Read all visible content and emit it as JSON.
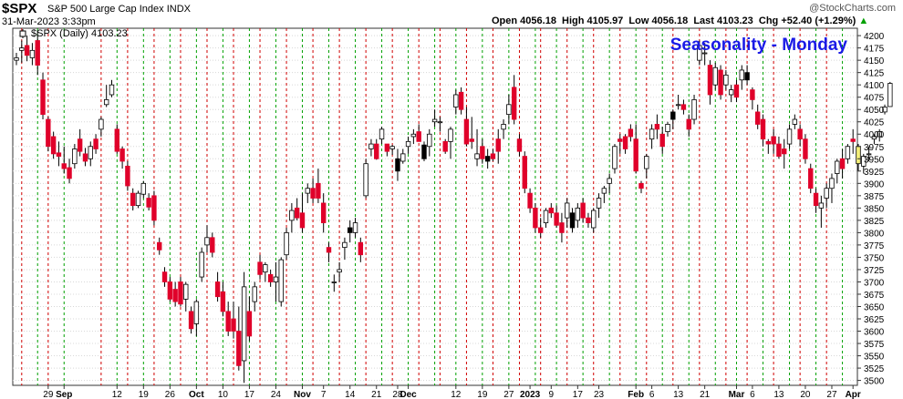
{
  "header": {
    "symbol": "$SPX",
    "name": "S&P 500 Large Cap Index",
    "exchange": "INDX",
    "date": "31-Mar-2023 3:33pm",
    "watermark": "@StockCharts.com",
    "ohlc": "Open 4056.18  High 4105.97  Low 4056.18  Last 4103.23  Chg +52.40 (+1.29%)",
    "arrow": "▲"
  },
  "colors": {
    "up": "#ffffff",
    "down": "#e0002a",
    "black": "#000000",
    "current": "#f5f07a",
    "grid": "#d8d8d8",
    "vline_red": "#d00000",
    "vline_green": "#00a000",
    "title_blue": "#1a1ae6"
  },
  "chart_data": {
    "type": "candlestick",
    "title": "Seasonality - Monday",
    "legend": "$SPX (Daily) 4103.23",
    "ylim": [
      3490,
      4215
    ],
    "yticks": [
      3500,
      3525,
      3550,
      3575,
      3600,
      3625,
      3650,
      3675,
      3700,
      3725,
      3750,
      3775,
      3800,
      3825,
      3850,
      3875,
      3900,
      3925,
      3950,
      3975,
      4000,
      4025,
      4050,
      4075,
      4100,
      4125,
      4150,
      4175,
      4200
    ],
    "xlabels": [
      {
        "i": 6,
        "t": "29"
      },
      {
        "i": 9,
        "t": "Sep",
        "b": true
      },
      {
        "i": 19,
        "t": "12"
      },
      {
        "i": 24,
        "t": "19"
      },
      {
        "i": 29,
        "t": "26"
      },
      {
        "i": 34,
        "t": "Oct",
        "b": true
      },
      {
        "i": 39,
        "t": "10"
      },
      {
        "i": 44,
        "t": "17"
      },
      {
        "i": 49,
        "t": "24"
      },
      {
        "i": 54,
        "t": "Nov",
        "b": true
      },
      {
        "i": 58,
        "t": "7"
      },
      {
        "i": 63,
        "t": "14"
      },
      {
        "i": 68,
        "t": "21"
      },
      {
        "i": 72,
        "t": "28"
      },
      {
        "i": 74,
        "t": "Dec",
        "b": true
      },
      {
        "i": 83,
        "t": "12"
      },
      {
        "i": 88,
        "t": "19"
      },
      {
        "i": 93,
        "t": "27"
      },
      {
        "i": 97,
        "t": "2023",
        "b": true
      },
      {
        "i": 101,
        "t": "9"
      },
      {
        "i": 106,
        "t": "17"
      },
      {
        "i": 110,
        "t": "23"
      },
      {
        "i": 117,
        "t": "Feb",
        "b": true
      },
      {
        "i": 120,
        "t": "6"
      },
      {
        "i": 125,
        "t": "13"
      },
      {
        "i": 130,
        "t": "21"
      },
      {
        "i": 136,
        "t": "Mar",
        "b": true
      },
      {
        "i": 139,
        "t": "6"
      },
      {
        "i": 144,
        "t": "13"
      },
      {
        "i": 149,
        "t": "20"
      },
      {
        "i": 154,
        "t": "27"
      },
      {
        "i": 158,
        "t": "Apr",
        "b": true
      }
    ],
    "red_lines": [
      1,
      6,
      16,
      21,
      26,
      31,
      36,
      41,
      46,
      51,
      56,
      61,
      66,
      71,
      76,
      80,
      85,
      90,
      95,
      99,
      104,
      109,
      114,
      119,
      124,
      129,
      134,
      138,
      143,
      148,
      153
    ],
    "green_lines": [
      4,
      9,
      19,
      24,
      29,
      34,
      39,
      44,
      49,
      54,
      59,
      64,
      69,
      74,
      79,
      83,
      88,
      93,
      98,
      102,
      107,
      112,
      117,
      122,
      127,
      132,
      136,
      141,
      146,
      151,
      156
    ],
    "ohlc": [
      [
        4150,
        4165,
        4140,
        4155
      ],
      [
        4170,
        4190,
        4145,
        4175
      ],
      [
        4180,
        4200,
        4148,
        4160
      ],
      [
        4155,
        4185,
        4140,
        4170
      ],
      [
        4190,
        4210,
        4120,
        4140
      ],
      [
        4110,
        4125,
        4030,
        4040
      ],
      [
        4030,
        4035,
        3965,
        3975
      ],
      [
        3995,
        4005,
        3950,
        3960
      ],
      [
        3962,
        3985,
        3935,
        3955
      ],
      [
        3940,
        3975,
        3920,
        3930
      ],
      [
        3932,
        3950,
        3900,
        3910
      ],
      [
        3940,
        3980,
        3930,
        3970
      ],
      [
        3990,
        4010,
        3955,
        3965
      ],
      [
        3960,
        3972,
        3935,
        3945
      ],
      [
        3950,
        3985,
        3935,
        3975
      ],
      [
        3990,
        4000,
        3960,
        3970
      ],
      [
        4010,
        4035,
        3995,
        4030
      ],
      [
        4060,
        4100,
        4055,
        4070
      ],
      [
        4080,
        4110,
        4075,
        4100
      ],
      [
        4010,
        4020,
        3960,
        3965
      ],
      [
        3970,
        3975,
        3930,
        3945
      ],
      [
        3935,
        3945,
        3885,
        3895
      ],
      [
        3880,
        3890,
        3845,
        3855
      ],
      [
        3855,
        3885,
        3850,
        3880
      ],
      [
        3878,
        3905,
        3870,
        3900
      ],
      [
        3870,
        3880,
        3845,
        3852
      ],
      [
        3875,
        3885,
        3815,
        3825
      ],
      [
        3780,
        3790,
        3755,
        3765
      ],
      [
        3720,
        3730,
        3690,
        3700
      ],
      [
        3700,
        3710,
        3660,
        3665
      ],
      [
        3685,
        3700,
        3650,
        3660
      ],
      [
        3700,
        3710,
        3650,
        3655
      ],
      [
        3665,
        3700,
        3640,
        3695
      ],
      [
        3640,
        3650,
        3595,
        3605
      ],
      [
        3615,
        3665,
        3590,
        3660
      ],
      [
        3710,
        3770,
        3700,
        3760
      ],
      [
        3775,
        3815,
        3760,
        3790
      ],
      [
        3790,
        3800,
        3750,
        3760
      ],
      [
        3700,
        3720,
        3660,
        3670
      ],
      [
        3680,
        3700,
        3630,
        3640
      ],
      [
        3640,
        3660,
        3590,
        3600
      ],
      [
        3625,
        3660,
        3585,
        3600
      ],
      [
        3600,
        3650,
        3520,
        3530
      ],
      [
        3540,
        3720,
        3495,
        3690
      ],
      [
        3640,
        3670,
        3580,
        3590
      ],
      [
        3660,
        3700,
        3640,
        3690
      ],
      [
        3740,
        3755,
        3705,
        3715
      ],
      [
        3720,
        3740,
        3700,
        3735
      ],
      [
        3715,
        3725,
        3690,
        3700
      ],
      [
        3700,
        3740,
        3660,
        3710
      ],
      [
        3660,
        3750,
        3650,
        3745
      ],
      [
        3755,
        3810,
        3745,
        3800
      ],
      [
        3825,
        3860,
        3800,
        3845
      ],
      [
        3850,
        3870,
        3825,
        3830
      ],
      [
        3840,
        3880,
        3800,
        3810
      ],
      [
        3880,
        3900,
        3860,
        3890
      ],
      [
        3890,
        3910,
        3860,
        3870
      ],
      [
        3900,
        3930,
        3860,
        3870
      ],
      [
        3860,
        3880,
        3800,
        3820
      ],
      [
        3770,
        3780,
        3740,
        3760
      ],
      [
        3700,
        3715,
        3680,
        3700
      ],
      [
        3720,
        3740,
        3700,
        3725
      ],
      [
        3770,
        3790,
        3745,
        3780
      ],
      [
        3810,
        3825,
        3780,
        3800
      ],
      [
        3800,
        3830,
        3790,
        3820
      ],
      [
        3780,
        3790,
        3740,
        3755
      ],
      [
        3875,
        3950,
        3870,
        3940
      ],
      [
        3970,
        3990,
        3955,
        3980
      ],
      [
        3980,
        3990,
        3948,
        3950
      ],
      [
        3990,
        4015,
        3980,
        4010
      ],
      [
        3980,
        3980,
        3955,
        3965
      ],
      [
        3970,
        3978,
        3958,
        3975
      ],
      [
        3950,
        3970,
        3905,
        3925
      ],
      [
        3945,
        3970,
        3940,
        3960
      ],
      [
        3975,
        3995,
        3960,
        3985
      ],
      [
        3995,
        4010,
        3980,
        4000
      ],
      [
        4005,
        4020,
        3985,
        3985
      ],
      [
        3978,
        3985,
        3945,
        3950
      ],
      [
        3975,
        4010,
        3955,
        4000
      ],
      [
        4025,
        4050,
        4015,
        4030
      ],
      [
        4025,
        4035,
        4005,
        4025
      ],
      [
        3985,
        3990,
        3960,
        3965
      ],
      [
        3985,
        4015,
        3950,
        4010
      ],
      [
        4055,
        4090,
        4040,
        4080
      ],
      [
        4085,
        4095,
        4040,
        4050
      ],
      [
        4030,
        4055,
        3975,
        3980
      ],
      [
        3990,
        4035,
        3970,
        3985
      ],
      [
        3950,
        4010,
        3935,
        3960
      ],
      [
        3975,
        3990,
        3940,
        3950
      ],
      [
        3955,
        3970,
        3930,
        3945
      ],
      [
        3960,
        3970,
        3945,
        3950
      ],
      [
        3990,
        4010,
        3940,
        3965
      ],
      [
        4010,
        4030,
        3990,
        4020
      ],
      [
        4040,
        4080,
        4020,
        4060
      ],
      [
        4095,
        4120,
        4020,
        4030
      ],
      [
        3990,
        4000,
        3955,
        3965
      ],
      [
        3955,
        3965,
        3880,
        3890
      ],
      [
        3880,
        3890,
        3840,
        3850
      ],
      [
        3850,
        3860,
        3800,
        3810
      ],
      [
        3810,
        3830,
        3790,
        3800
      ],
      [
        3820,
        3850,
        3810,
        3845
      ],
      [
        3850,
        3860,
        3830,
        3840
      ],
      [
        3840,
        3855,
        3810,
        3815
      ],
      [
        3820,
        3840,
        3780,
        3800
      ],
      [
        3830,
        3870,
        3810,
        3860
      ],
      [
        3840,
        3850,
        3800,
        3810
      ],
      [
        3825,
        3860,
        3810,
        3850
      ],
      [
        3860,
        3870,
        3820,
        3830
      ],
      [
        3830,
        3840,
        3810,
        3820
      ],
      [
        3810,
        3850,
        3800,
        3845
      ],
      [
        3850,
        3880,
        3830,
        3870
      ],
      [
        3880,
        3895,
        3860,
        3890
      ],
      [
        3900,
        3920,
        3880,
        3910
      ],
      [
        3930,
        3980,
        3920,
        3975
      ],
      [
        3990,
        4000,
        3960,
        3985
      ],
      [
        3995,
        4000,
        3960,
        3970
      ],
      [
        4010,
        4020,
        3985,
        3995
      ],
      [
        3990,
        4020,
        3920,
        3925
      ],
      [
        3900,
        3905,
        3880,
        3890
      ],
      [
        3930,
        3960,
        3910,
        3955
      ],
      [
        3990,
        4020,
        3970,
        4010
      ],
      [
        4020,
        4040,
        3990,
        4010
      ],
      [
        4000,
        4015,
        3960,
        3975
      ],
      [
        4005,
        4025,
        3995,
        4020
      ],
      [
        4030,
        4050,
        4010,
        4045
      ],
      [
        4060,
        4080,
        4050,
        4060
      ],
      [
        4060,
        4070,
        4040,
        4050
      ],
      [
        4030,
        4040,
        3995,
        4010
      ],
      [
        4030,
        4080,
        4020,
        4070
      ],
      [
        4150,
        4190,
        4140,
        4180
      ],
      [
        4165,
        4185,
        4140,
        4165
      ],
      [
        4140,
        4150,
        4060,
        4080
      ],
      [
        4100,
        4145,
        4090,
        4135
      ],
      [
        4130,
        4140,
        4070,
        4080
      ],
      [
        4100,
        4130,
        4090,
        4120
      ],
      [
        4080,
        4100,
        4065,
        4090
      ],
      [
        4100,
        4110,
        4065,
        4075
      ],
      [
        4110,
        4140,
        4090,
        4130
      ],
      [
        4125,
        4140,
        4100,
        4110
      ],
      [
        4090,
        4095,
        4050,
        4070
      ],
      [
        4045,
        4060,
        4010,
        4020
      ],
      [
        4030,
        4040,
        3975,
        3990
      ],
      [
        3985,
        3990,
        3960,
        3980
      ],
      [
        3995,
        4010,
        3960,
        3980
      ],
      [
        3980,
        3995,
        3950,
        3955
      ],
      [
        3970,
        3990,
        3930,
        3960
      ],
      [
        3980,
        4020,
        3970,
        4010
      ],
      [
        4020,
        4040,
        4010,
        4030
      ],
      [
        4010,
        4020,
        3975,
        3990
      ],
      [
        3990,
        4000,
        3940,
        3950
      ],
      [
        3930,
        3940,
        3880,
        3890
      ],
      [
        3880,
        3890,
        3840,
        3855
      ],
      [
        3850,
        3875,
        3810,
        3860
      ],
      [
        3870,
        3900,
        3850,
        3890
      ],
      [
        3890,
        3920,
        3860,
        3910
      ],
      [
        3920,
        3950,
        3900,
        3945
      ],
      [
        3950,
        3970,
        3910,
        3930
      ],
      [
        3950,
        3980,
        3940,
        3975
      ],
      [
        3990,
        4010,
        3960,
        3985
      ],
      [
        3975,
        3980,
        3925,
        3940
      ],
      [
        3935,
        3960,
        3920,
        3955
      ],
      [
        3960,
        3975,
        3945,
        3960
      ],
      [
        3990,
        4000,
        3980,
        3995
      ],
      [
        3995,
        4010,
        3985,
        4005
      ],
      [
        4045,
        4060,
        4040,
        4055
      ],
      [
        4056,
        4106,
        4056,
        4103
      ]
    ],
    "black_bars": [
      63,
      72,
      77,
      89,
      105,
      124,
      138
    ],
    "current_index": 159
  }
}
